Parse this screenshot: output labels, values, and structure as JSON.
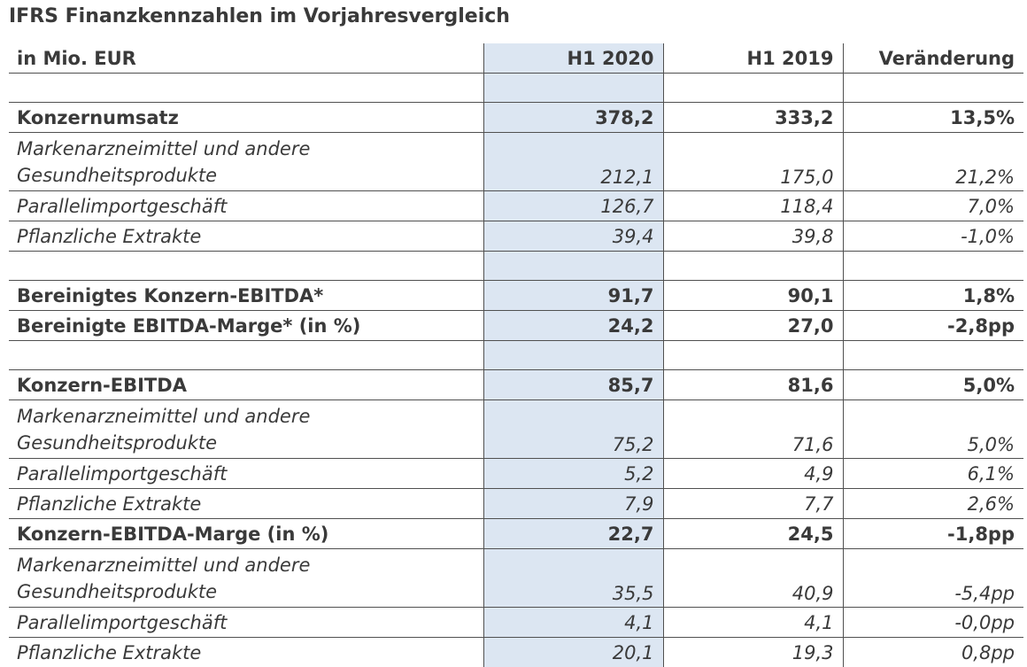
{
  "title": "IFRS Finanzkennzahlen im Vorjahresvergleich",
  "columns": [
    "in Mio. EUR",
    "H1 2020",
    "H1 2019",
    "Veränderung"
  ],
  "rows": [
    {
      "style": "spacer",
      "cells": [
        "",
        "",
        "",
        ""
      ]
    },
    {
      "style": "bold",
      "cells": [
        "Konzernumsatz",
        "378,2",
        "333,2",
        "13,5%"
      ]
    },
    {
      "style": "it2",
      "cells": [
        "Markenarzneimittel und andere Gesundheitsprodukte",
        "212,1",
        "175,0",
        "21,2%"
      ]
    },
    {
      "style": "it",
      "cells": [
        "Parallelimportgeschäft",
        "126,7",
        "118,4",
        "7,0%"
      ]
    },
    {
      "style": "it",
      "cells": [
        "Pflanzliche Extrakte",
        "39,4",
        "39,8",
        "-1,0%"
      ]
    },
    {
      "style": "spacer",
      "cells": [
        "",
        "",
        "",
        ""
      ]
    },
    {
      "style": "bold",
      "cells": [
        "Bereinigtes Konzern-EBITDA*",
        "91,7",
        "90,1",
        "1,8%"
      ]
    },
    {
      "style": "bold",
      "cells": [
        "Bereinigte EBITDA-Marge* (in %)",
        "24,2",
        "27,0",
        "-2,8pp"
      ]
    },
    {
      "style": "spacer",
      "cells": [
        "",
        "",
        "",
        ""
      ]
    },
    {
      "style": "bold",
      "cells": [
        "Konzern-EBITDA",
        "85,7",
        "81,6",
        "5,0%"
      ]
    },
    {
      "style": "it2",
      "cells": [
        "Markenarzneimittel und andere Gesundheitsprodukte",
        "75,2",
        "71,6",
        "5,0%"
      ]
    },
    {
      "style": "it",
      "cells": [
        "Parallelimportgeschäft",
        "5,2",
        "4,9",
        "6,1%"
      ]
    },
    {
      "style": "it",
      "cells": [
        "Pflanzliche Extrakte",
        "7,9",
        "7,7",
        "2,6%"
      ]
    },
    {
      "style": "bold",
      "cells": [
        "Konzern-EBITDA-Marge (in %)",
        "22,7",
        "24,5",
        "-1,8pp"
      ]
    },
    {
      "style": "it2",
      "cells": [
        "Markenarzneimittel und andere Gesundheitsprodukte",
        "35,5",
        "40,9",
        "-5,4pp"
      ]
    },
    {
      "style": "it",
      "cells": [
        "Parallelimportgeschäft",
        "4,1",
        "4,1",
        "-0,0pp"
      ]
    },
    {
      "style": "it nobottom",
      "cells": [
        "Pflanzliche Extrakte",
        "20,1",
        "19,3",
        "0,8pp"
      ]
    }
  ]
}
